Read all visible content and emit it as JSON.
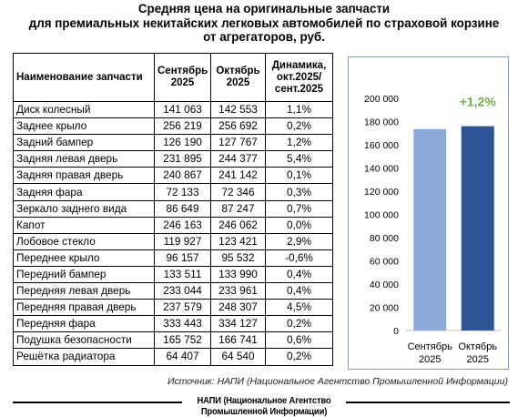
{
  "title": {
    "line1": "Средняя цена на оригинальные запчасти",
    "line2": "для премиальных некитайских легковых автомобилей по страховой корзине",
    "line3": "от агрегаторов, руб."
  },
  "table": {
    "headers": {
      "name": "Наименование запчасти",
      "sep": "Сентябрь 2025",
      "oct": "Октябрь 2025",
      "dyn": "Динамика, окт.2025/ сент.2025"
    },
    "rows": [
      {
        "name": "Диск колесный",
        "sep": "141 063",
        "oct": "142 553",
        "dyn": "1,1%"
      },
      {
        "name": "Заднее крыло",
        "sep": "256 219",
        "oct": "256 692",
        "dyn": "0,2%"
      },
      {
        "name": "Задний бампер",
        "sep": "126 190",
        "oct": "127 767",
        "dyn": "1,2%"
      },
      {
        "name": "Задняя левая дверь",
        "sep": "231 895",
        "oct": "244 377",
        "dyn": "5,4%"
      },
      {
        "name": "Задняя правая дверь",
        "sep": "240 867",
        "oct": "241 142",
        "dyn": "0,1%"
      },
      {
        "name": "Задняя фара",
        "sep": "72 133",
        "oct": "72 346",
        "dyn": "0,3%"
      },
      {
        "name": "Зеркало заднего вида",
        "sep": "86 649",
        "oct": "87 247",
        "dyn": "0,7%"
      },
      {
        "name": "Капот",
        "sep": "246 163",
        "oct": "246 062",
        "dyn": "0,0%"
      },
      {
        "name": "Лобовое стекло",
        "sep": "119 927",
        "oct": "123 421",
        "dyn": "2,9%"
      },
      {
        "name": "Переднее крыло",
        "sep": "96 157",
        "oct": "95 532",
        "dyn": "-0,6%"
      },
      {
        "name": "Передний бампер",
        "sep": "133 511",
        "oct": "133 990",
        "dyn": "0,4%"
      },
      {
        "name": "Передняя левая дверь",
        "sep": "233 044",
        "oct": "233 961",
        "dyn": "0,4%"
      },
      {
        "name": "Передняя правая дверь",
        "sep": "237 579",
        "oct": "248 307",
        "dyn": "4,5%"
      },
      {
        "name": "Передняя фара",
        "sep": "333 443",
        "oct": "334 127",
        "dyn": "0,2%"
      },
      {
        "name": "Подушка безопасности",
        "sep": "165 752",
        "oct": "166 741",
        "dyn": "0,6%"
      },
      {
        "name": "Решётка радиатора",
        "sep": "64 407",
        "oct": "64 540",
        "dyn": "0,2%"
      }
    ]
  },
  "chart_data": {
    "type": "bar",
    "categories": [
      "Сентябрь 2025",
      "Октябрь 2025"
    ],
    "values": [
      173500,
      176000
    ],
    "ylim": [
      0,
      200000
    ],
    "yticks": [
      0,
      20000,
      40000,
      60000,
      80000,
      100000,
      120000,
      140000,
      160000,
      180000,
      200000
    ],
    "ytick_labels": [
      "0",
      "20 000",
      "40 000",
      "60 000",
      "80 000",
      "100 000",
      "120 000",
      "140 000",
      "160 000",
      "180 000",
      "200 000"
    ],
    "annotation": "+1,2%",
    "bar_colors": [
      "#8eaadb",
      "#2f5597"
    ],
    "annotation_color": "#70ad47",
    "grid": false,
    "legend": "none"
  },
  "source": "Источник: НАПИ (Национальное Агентство Промышленной Информации)",
  "footer": "НАПИ (Национальное Агентство Промышленной Информации)"
}
